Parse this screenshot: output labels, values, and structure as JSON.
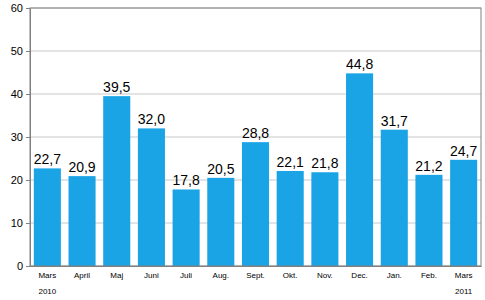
{
  "chart_data": {
    "type": "bar",
    "categories": [
      "Mars\n2010",
      "April",
      "Maj",
      "Juni",
      "Juli",
      "Aug.",
      "Sept.",
      "Okt.",
      "Nov.",
      "Dec.",
      "Jan.",
      "Feb.",
      "Mars\n2011"
    ],
    "values": [
      22.7,
      20.9,
      39.5,
      32.0,
      17.8,
      20.5,
      28.8,
      22.1,
      21.8,
      44.8,
      31.7,
      21.2,
      24.7
    ],
    "value_labels": [
      "22,7",
      "20,9",
      "39,5",
      "32,0",
      "17,8",
      "20,5",
      "28,8",
      "22,1",
      "21,8",
      "44,8",
      "31,7",
      "21,2",
      "24,7"
    ],
    "color": "#1aa4e6",
    "ylim": [
      0,
      60
    ],
    "yticks": [
      0,
      10,
      20,
      30,
      40,
      50,
      60
    ],
    "grid": true,
    "data_labels": true
  }
}
